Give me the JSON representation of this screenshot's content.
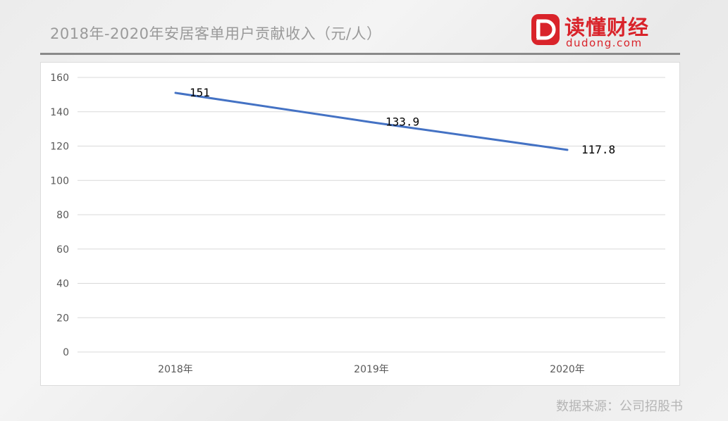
{
  "header": {
    "title": "2018年-2020年安居客单用户贡献收入（元/人）"
  },
  "logo": {
    "name_cn": "读懂财经",
    "name_en": "dudong.com",
    "color": "#d9232a"
  },
  "footer": {
    "source": "数据来源：公司招股书"
  },
  "chart_data": {
    "type": "line",
    "categories": [
      "2018年",
      "2019年",
      "2020年"
    ],
    "series": [
      {
        "values": [
          151,
          133.9,
          117.8
        ],
        "data_labels": [
          "151",
          "133.9",
          "117.8"
        ],
        "color": "#4472c4"
      }
    ],
    "ylim": [
      0,
      160
    ],
    "yticks": [
      0,
      20,
      40,
      60,
      80,
      100,
      120,
      140,
      160
    ],
    "grid": true,
    "legend": "none"
  }
}
